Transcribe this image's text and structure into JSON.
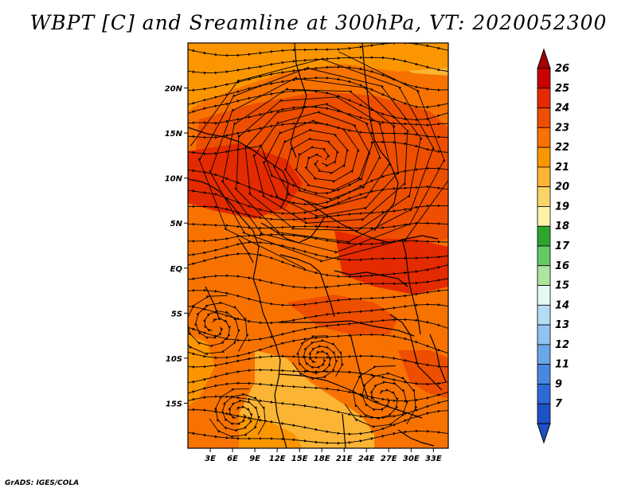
{
  "title": "WBPT [C] and Sreamline at 300hPa, VT: 2020052300",
  "credit": "GrADS: IGES/COLA",
  "map": {
    "lon_range": [
      0,
      35
    ],
    "lat_range": [
      -20,
      25
    ],
    "x_ticks": [
      {
        "value": 3,
        "label": "3E"
      },
      {
        "value": 6,
        "label": "6E"
      },
      {
        "value": 9,
        "label": "9E"
      },
      {
        "value": 12,
        "label": "12E"
      },
      {
        "value": 15,
        "label": "15E"
      },
      {
        "value": 18,
        "label": "18E"
      },
      {
        "value": 21,
        "label": "21E"
      },
      {
        "value": 24,
        "label": "24E"
      },
      {
        "value": 27,
        "label": "27E"
      },
      {
        "value": 30,
        "label": "30E"
      },
      {
        "value": 33,
        "label": "33E"
      }
    ],
    "y_ticks": [
      {
        "value": 20,
        "label": "20N"
      },
      {
        "value": 15,
        "label": "15N"
      },
      {
        "value": 10,
        "label": "10N"
      },
      {
        "value": 5,
        "label": "5N"
      },
      {
        "value": 0,
        "label": "EQ"
      },
      {
        "value": -5,
        "label": "5S"
      },
      {
        "value": -10,
        "label": "10S"
      },
      {
        "value": -15,
        "label": "15S"
      }
    ],
    "vortex_center": {
      "lon": 18,
      "lat": 12
    }
  },
  "colorbar": {
    "levels": [
      {
        "label": "26",
        "color": "#a50000"
      },
      {
        "label": "25",
        "color": "#c80000"
      },
      {
        "label": "24",
        "color": "#e42a00"
      },
      {
        "label": "23",
        "color": "#ee4e00"
      },
      {
        "label": "22",
        "color": "#f77200"
      },
      {
        "label": "21",
        "color": "#fb9600"
      },
      {
        "label": "20",
        "color": "#fbb434"
      },
      {
        "label": "19",
        "color": "#fcd36b"
      },
      {
        "label": "18",
        "color": "#fdf3a8"
      },
      {
        "label": "17",
        "color": "#2ea52e"
      },
      {
        "label": "16",
        "color": "#64c864"
      },
      {
        "label": "15",
        "color": "#aee4a0"
      },
      {
        "label": "14",
        "color": "#e6f9f7"
      },
      {
        "label": "13",
        "color": "#b4dcf5"
      },
      {
        "label": "12",
        "color": "#8fc3f0"
      },
      {
        "label": "11",
        "color": "#6aa6e8"
      },
      {
        "label": "9",
        "color": "#4a87e0"
      },
      {
        "label": "7",
        "color": "#2e6ad6"
      },
      {
        "label": "",
        "color": "#1e50c8"
      }
    ]
  },
  "fill_colors": {
    "light": "#fbb434",
    "mid": "#fb9600",
    "orange": "#f77200",
    "dark": "#ee4e00",
    "red": "#e42a00"
  }
}
